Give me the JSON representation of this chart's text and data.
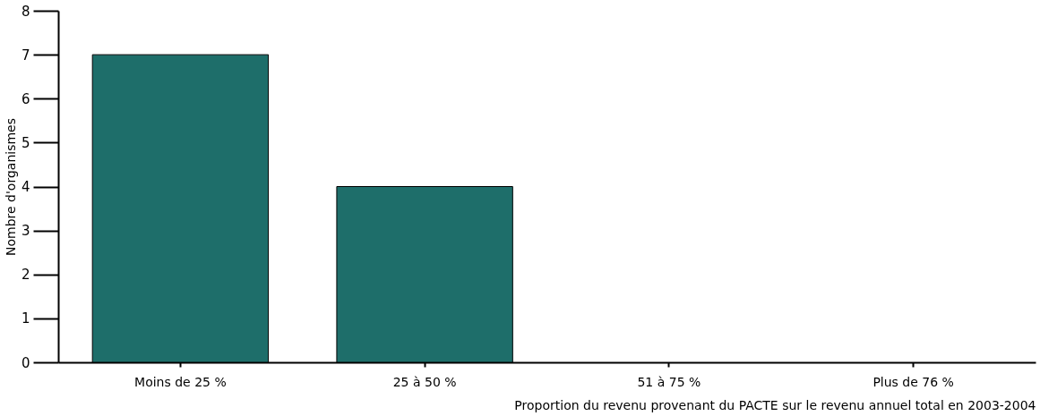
{
  "chart_data": {
    "type": "bar",
    "xlabel": "Proportion du revenu provenant du PACTE sur le revenu annuel total en 2003-2004",
    "ylabel": "Nombre d'organismes",
    "categories": [
      "Moins de 25 %",
      "25 à 50 %",
      "51 à 75 %",
      "Plus de 76 %"
    ],
    "values": [
      7,
      4,
      0,
      0
    ],
    "color": "#1e6e6a",
    "ylim": [
      0,
      8
    ],
    "yticks": [
      0,
      1,
      2,
      3,
      4,
      5,
      6,
      7,
      8
    ],
    "grid": false
  }
}
